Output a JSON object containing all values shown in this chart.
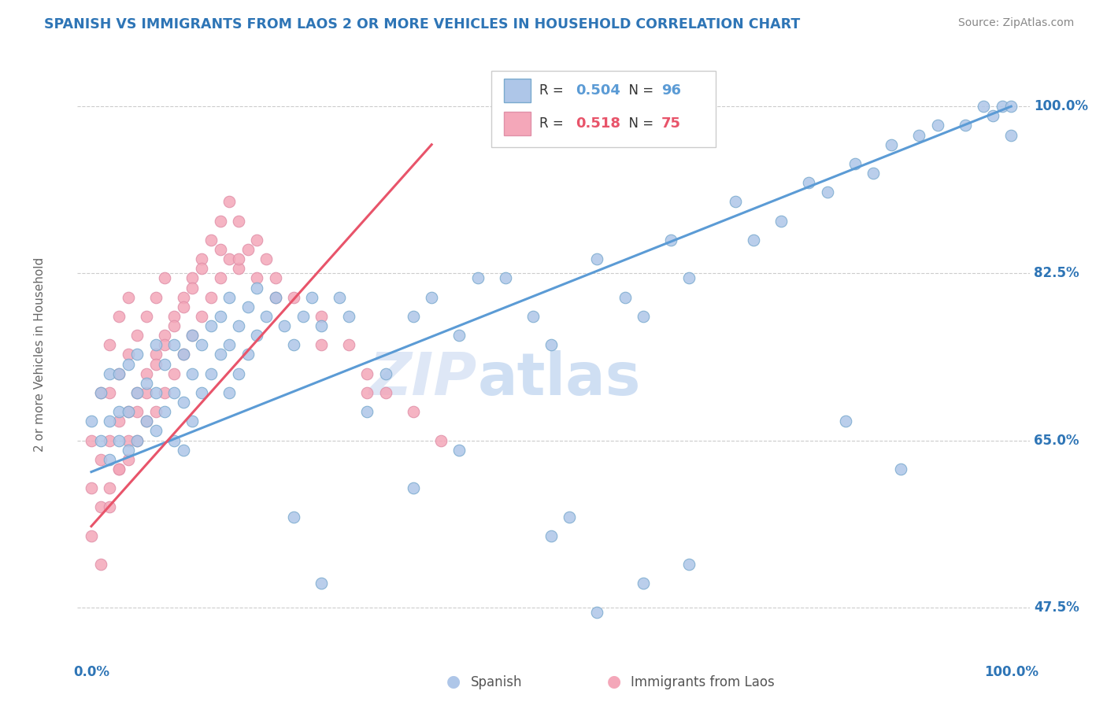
{
  "title": "SPANISH VS IMMIGRANTS FROM LAOS 2 OR MORE VEHICLES IN HOUSEHOLD CORRELATION CHART",
  "source": "Source: ZipAtlas.com",
  "ylabel": "2 or more Vehicles in Household",
  "yticks": [
    "47.5%",
    "65.0%",
    "82.5%",
    "100.0%"
  ],
  "ytick_vals": [
    0.475,
    0.65,
    0.825,
    1.0
  ],
  "legend1_label": "Spanish",
  "legend2_label": "Immigrants from Laos",
  "r_spanish": "0.504",
  "n_spanish": "96",
  "r_laos": "0.518",
  "n_laos": "75",
  "spanish_color": "#aec6e8",
  "laos_color": "#f4a7b9",
  "spanish_line_color": "#5b9bd5",
  "laos_line_color": "#e8546a",
  "watermark_zip": "ZIP",
  "watermark_atlas": "atlas",
  "title_color": "#2e75b6",
  "axis_label_color": "#2e75b6",
  "source_color": "#888888",
  "spanish_x": [
    0.0,
    0.01,
    0.01,
    0.02,
    0.02,
    0.02,
    0.03,
    0.03,
    0.03,
    0.04,
    0.04,
    0.04,
    0.05,
    0.05,
    0.05,
    0.06,
    0.06,
    0.07,
    0.07,
    0.07,
    0.08,
    0.08,
    0.09,
    0.09,
    0.09,
    0.1,
    0.1,
    0.1,
    0.11,
    0.11,
    0.11,
    0.12,
    0.12,
    0.13,
    0.13,
    0.14,
    0.14,
    0.15,
    0.15,
    0.15,
    0.16,
    0.16,
    0.17,
    0.17,
    0.18,
    0.18,
    0.19,
    0.2,
    0.21,
    0.22,
    0.23,
    0.24,
    0.25,
    0.27,
    0.28,
    0.3,
    0.32,
    0.35,
    0.37,
    0.4,
    0.42,
    0.45,
    0.48,
    0.5,
    0.55,
    0.58,
    0.6,
    0.63,
    0.65,
    0.7,
    0.72,
    0.75,
    0.78,
    0.8,
    0.83,
    0.85,
    0.87,
    0.9,
    0.92,
    0.95,
    0.97,
    0.98,
    0.99,
    1.0,
    1.0,
    0.22,
    0.25,
    0.35,
    0.4,
    0.5,
    0.52,
    0.55,
    0.6,
    0.65,
    0.82,
    0.88
  ],
  "spanish_y": [
    0.67,
    0.65,
    0.7,
    0.63,
    0.67,
    0.72,
    0.65,
    0.68,
    0.72,
    0.64,
    0.68,
    0.73,
    0.65,
    0.7,
    0.74,
    0.67,
    0.71,
    0.66,
    0.7,
    0.75,
    0.68,
    0.73,
    0.65,
    0.7,
    0.75,
    0.64,
    0.69,
    0.74,
    0.67,
    0.72,
    0.76,
    0.7,
    0.75,
    0.72,
    0.77,
    0.74,
    0.78,
    0.7,
    0.75,
    0.8,
    0.72,
    0.77,
    0.74,
    0.79,
    0.76,
    0.81,
    0.78,
    0.8,
    0.77,
    0.75,
    0.78,
    0.8,
    0.77,
    0.8,
    0.78,
    0.68,
    0.72,
    0.78,
    0.8,
    0.76,
    0.82,
    0.82,
    0.78,
    0.75,
    0.84,
    0.8,
    0.78,
    0.86,
    0.82,
    0.9,
    0.86,
    0.88,
    0.92,
    0.91,
    0.94,
    0.93,
    0.96,
    0.97,
    0.98,
    0.98,
    1.0,
    0.99,
    1.0,
    1.0,
    0.97,
    0.57,
    0.5,
    0.6,
    0.64,
    0.55,
    0.57,
    0.47,
    0.5,
    0.52,
    0.67,
    0.62
  ],
  "laos_x": [
    0.0,
    0.0,
    0.01,
    0.01,
    0.01,
    0.02,
    0.02,
    0.02,
    0.02,
    0.03,
    0.03,
    0.03,
    0.03,
    0.04,
    0.04,
    0.04,
    0.04,
    0.05,
    0.05,
    0.05,
    0.06,
    0.06,
    0.06,
    0.07,
    0.07,
    0.07,
    0.08,
    0.08,
    0.08,
    0.09,
    0.09,
    0.1,
    0.1,
    0.11,
    0.11,
    0.12,
    0.12,
    0.13,
    0.13,
    0.14,
    0.14,
    0.15,
    0.15,
    0.16,
    0.16,
    0.17,
    0.18,
    0.19,
    0.2,
    0.22,
    0.25,
    0.28,
    0.3,
    0.32,
    0.35,
    0.38,
    0.0,
    0.01,
    0.02,
    0.03,
    0.04,
    0.05,
    0.06,
    0.07,
    0.08,
    0.09,
    0.1,
    0.11,
    0.12,
    0.14,
    0.16,
    0.18,
    0.2,
    0.25,
    0.3
  ],
  "laos_y": [
    0.6,
    0.65,
    0.58,
    0.63,
    0.7,
    0.6,
    0.65,
    0.7,
    0.75,
    0.62,
    0.67,
    0.72,
    0.78,
    0.63,
    0.68,
    0.74,
    0.8,
    0.65,
    0.7,
    0.76,
    0.67,
    0.72,
    0.78,
    0.68,
    0.74,
    0.8,
    0.7,
    0.76,
    0.82,
    0.72,
    0.78,
    0.74,
    0.8,
    0.76,
    0.82,
    0.78,
    0.84,
    0.8,
    0.86,
    0.82,
    0.88,
    0.84,
    0.9,
    0.83,
    0.88,
    0.85,
    0.86,
    0.84,
    0.82,
    0.8,
    0.78,
    0.75,
    0.72,
    0.7,
    0.68,
    0.65,
    0.55,
    0.52,
    0.58,
    0.62,
    0.65,
    0.68,
    0.7,
    0.73,
    0.75,
    0.77,
    0.79,
    0.81,
    0.83,
    0.85,
    0.84,
    0.82,
    0.8,
    0.75,
    0.7
  ],
  "spanish_line": [
    0.0,
    1.0,
    0.617,
    1.0
  ],
  "laos_line": [
    0.0,
    0.37,
    0.56,
    0.96
  ]
}
